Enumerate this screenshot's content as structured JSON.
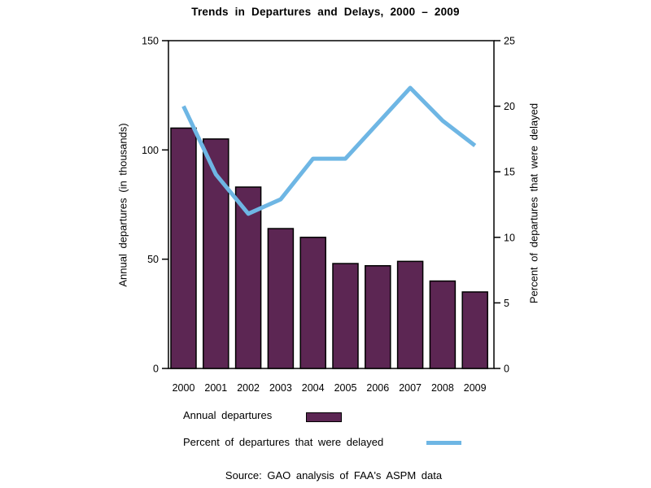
{
  "title": "Trends in Departures and Delays, 2000 – 2009",
  "source": "Source: GAO analysis of FAA's ASPM data",
  "left_axis": {
    "label": "Annual departures (in thousands)",
    "tick_labels": [
      "0",
      "50",
      "100",
      "150"
    ],
    "range": [
      0,
      150
    ]
  },
  "right_axis": {
    "label": "Percent of departures that were delayed",
    "tick_labels": [
      "0",
      "5",
      "10",
      "15",
      "20",
      "25"
    ],
    "range": [
      0,
      25
    ]
  },
  "legend": {
    "bar_label": "Annual departures",
    "line_label": "Percent of departures that were delayed"
  },
  "colors": {
    "bar_fill": "#5C2653",
    "bar_stroke": "#000000",
    "line": "#6EB6E4",
    "axis": "#000000",
    "background": "#FFFFFF",
    "text": "#000000"
  },
  "chart_data": {
    "type": "combo-bar-line",
    "categories": [
      "2000",
      "2001",
      "2002",
      "2003",
      "2004",
      "2005",
      "2006",
      "2007",
      "2008",
      "2009"
    ],
    "series": [
      {
        "name": "Annual departures",
        "type": "bar",
        "axis": "left",
        "values": [
          110,
          105,
          83,
          64,
          60,
          48,
          47,
          49,
          40,
          35
        ]
      },
      {
        "name": "Percent of departures that were delayed",
        "type": "line",
        "axis": "right",
        "values": [
          20,
          14.8,
          11.8,
          12.9,
          16,
          16,
          18.7,
          21.4,
          18.9,
          17
        ]
      }
    ],
    "title": "Trends in Departures and Delays, 2000 – 2009",
    "left_ylabel": "Annual departures (in thousands)",
    "right_ylabel": "Percent of departures that were delayed",
    "left_ylim": [
      0,
      150
    ],
    "right_ylim": [
      0,
      25
    ],
    "grid": false,
    "legend_position": "bottom-left"
  }
}
